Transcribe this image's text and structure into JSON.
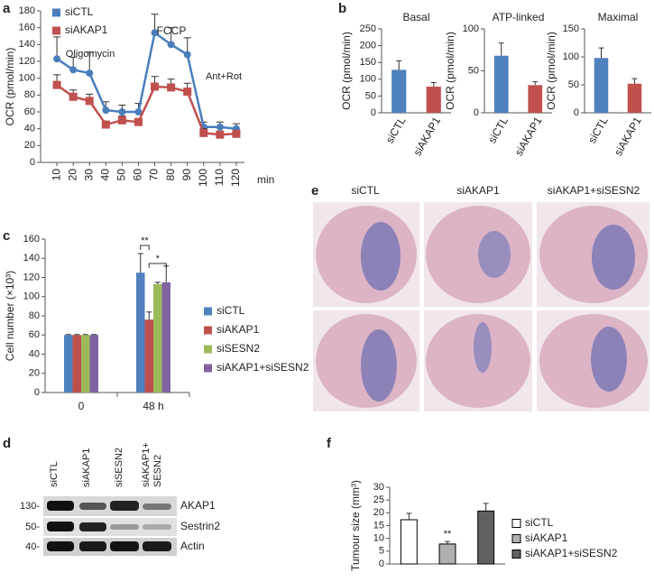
{
  "panel_labels": [
    "a",
    "b",
    "c",
    "d",
    "e",
    "f"
  ],
  "chart_data": [
    {
      "type": "line",
      "y_label": "OCR (pmol/min)",
      "x_label": "min",
      "x": [
        10,
        20,
        30,
        40,
        50,
        60,
        70,
        80,
        90,
        100,
        110,
        120
      ],
      "xlim": [
        0,
        125
      ],
      "xticks": [
        10,
        20,
        30,
        40,
        50,
        60,
        70,
        80,
        90,
        100,
        110,
        120
      ],
      "ylim": [
        0,
        180
      ],
      "yticks": [
        0,
        20,
        40,
        60,
        80,
        100,
        120,
        140,
        160,
        180
      ],
      "legend": "upper left",
      "series": [
        {
          "name": "siCTL",
          "color": "#4a7ebb",
          "marker": "circle",
          "values": [
            123,
            110,
            106,
            62,
            60,
            60,
            154,
            140,
            128,
            42,
            42,
            40
          ],
          "errors": [
            26,
            15,
            25,
            10,
            8,
            10,
            22,
            20,
            20,
            6,
            6,
            6
          ]
        },
        {
          "name": "siAKAP1",
          "color": "#c0504d",
          "marker": "square",
          "values": [
            92,
            78,
            73,
            45,
            50,
            48,
            90,
            89,
            84,
            35,
            33,
            34
          ],
          "errors": [
            12,
            8,
            8,
            4,
            5,
            4,
            12,
            10,
            10,
            5,
            4,
            4
          ]
        }
      ],
      "annotations": [
        "Oligomycin",
        "FCCP",
        "Ant+Rot"
      ]
    },
    {
      "type": "bar",
      "title": "Basal",
      "y_label": "OCR (pmol/min)",
      "categories": [
        "siCTL",
        "siAKAP1"
      ],
      "values": [
        128,
        78
      ],
      "errors": [
        27,
        12
      ],
      "colors": [
        "#4f81bd",
        "#c0504d"
      ],
      "ylim": [
        0,
        250
      ],
      "yticks": [
        0,
        50,
        100,
        150,
        200,
        250
      ]
    },
    {
      "type": "bar",
      "title": "ATP-linked",
      "y_label": "OCR (pmol/min)",
      "categories": [
        "siCTL",
        "siAKAP1"
      ],
      "values": [
        68,
        33
      ],
      "errors": [
        15,
        4
      ],
      "colors": [
        "#4f81bd",
        "#c0504d"
      ],
      "ylim": [
        0,
        100
      ],
      "yticks": [
        0,
        50,
        100
      ]
    },
    {
      "type": "bar",
      "title": "Maximal",
      "y_label": "OCR (pmol/min)",
      "categories": [
        "siCTL",
        "siAKAP1"
      ],
      "values": [
        98,
        52
      ],
      "errors": [
        18,
        9
      ],
      "colors": [
        "#4f81bd",
        "#c0504d"
      ],
      "ylim": [
        0,
        150
      ],
      "yticks": [
        0,
        50,
        100,
        150
      ]
    },
    {
      "type": "bar",
      "y_label": "Cell number (×10³)",
      "categories": [
        "0",
        "48 h"
      ],
      "series": [
        {
          "name": "siCTL",
          "color": "#4f81bd",
          "values": [
            60,
            125
          ],
          "errors": [
            0.5,
            20
          ]
        },
        {
          "name": "siAKAP1",
          "color": "#c0504d",
          "values": [
            60,
            76
          ],
          "errors": [
            0.5,
            8
          ]
        },
        {
          "name": "siSESN2",
          "color": "#9bbb59",
          "values": [
            60,
            113
          ],
          "errors": [
            0.5,
            2
          ]
        },
        {
          "name": "siAKAP1+siSESN2",
          "color": "#8064a2",
          "values": [
            60,
            115
          ],
          "errors": [
            0.5,
            17
          ]
        }
      ],
      "ylim": [
        0,
        160
      ],
      "yticks": [
        0,
        20,
        40,
        60,
        80,
        100,
        120,
        140,
        160
      ],
      "legend": "right",
      "annotations": [
        "**",
        "*"
      ]
    },
    {
      "type": "bar",
      "y_label": "Tumour size (mm³)",
      "categories": [
        "siCTL",
        "siAKAP1",
        "siAKAP1+siSESN2"
      ],
      "values": [
        17.3,
        7.8,
        20.7
      ],
      "errors": [
        2.5,
        1.0,
        3.0
      ],
      "colors": [
        "#ffffff",
        "#b0b0b0",
        "#606060"
      ],
      "ylim": [
        0,
        30
      ],
      "yticks": [
        0,
        5,
        10,
        15,
        20,
        25,
        30
      ],
      "legend": "right",
      "annotations": [
        "**"
      ]
    }
  ],
  "blot": {
    "lanes": [
      "siCTL",
      "siAKAP1",
      "siSESN2",
      [
        "siAKAP1+",
        "SESN2"
      ]
    ],
    "bands": [
      "AKAP1",
      "Sestrin2",
      "Actin"
    ],
    "markers": [
      "130-",
      "50-",
      "40-"
    ]
  },
  "histology": {
    "columns": [
      "siCTL",
      "siAKAP1",
      "siAKAP1+siSESN2"
    ]
  }
}
